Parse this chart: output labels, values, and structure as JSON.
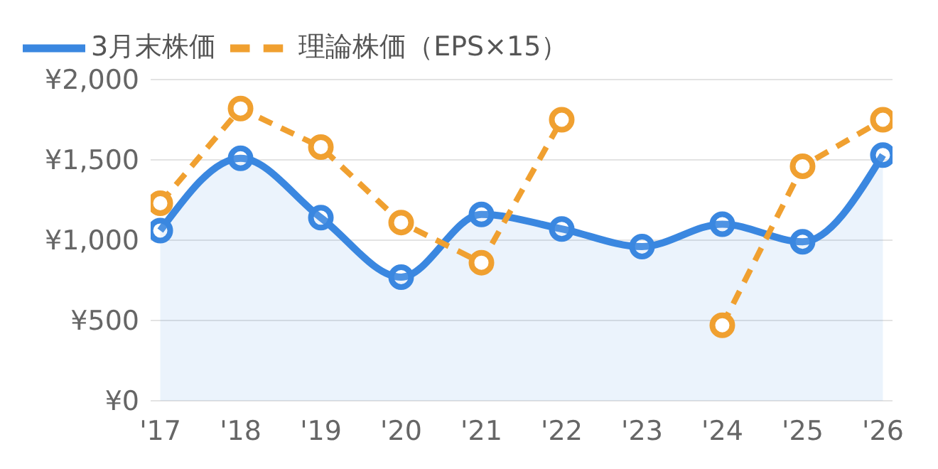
{
  "chart_data": {
    "type": "line",
    "categories": [
      "'17",
      "'18",
      "'19",
      "'20",
      "'21",
      "'22",
      "'23",
      "'24",
      "'25",
      "'26"
    ],
    "series": [
      {
        "name": "3月末株価",
        "type": "area",
        "color": "#3a87e0",
        "line_style": "solid",
        "values": [
          1060,
          1510,
          1140,
          770,
          1160,
          1070,
          960,
          1100,
          990,
          1530
        ]
      },
      {
        "name": "理論株価（EPS×15）",
        "color": "#f0a030",
        "line_style": "dashed",
        "values": [
          1230,
          1820,
          1580,
          1110,
          860,
          1750,
          null,
          470,
          1460,
          1750
        ]
      }
    ],
    "ylim": [
      0,
      2000
    ],
    "yticks": [
      {
        "value": 0,
        "label": "¥0"
      },
      {
        "value": 500,
        "label": "¥500"
      },
      {
        "value": 1000,
        "label": "¥1,000"
      },
      {
        "value": 1500,
        "label": "¥1,500"
      },
      {
        "value": 2000,
        "label": "¥2,000"
      }
    ],
    "grid": "y",
    "legend": "top left",
    "marker": "circle"
  }
}
